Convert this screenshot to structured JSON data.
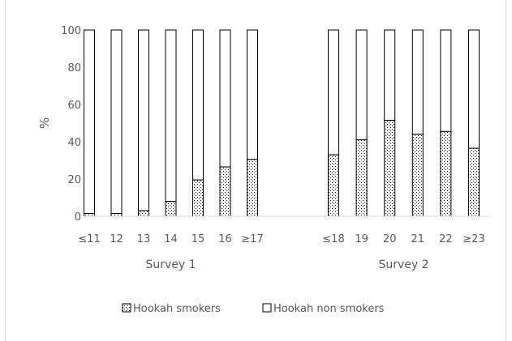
{
  "chart_data": {
    "type": "bar",
    "stacked": true,
    "ylabel": "%",
    "ylim": [
      0,
      100
    ],
    "yticks": [
      0,
      20,
      40,
      60,
      80,
      100
    ],
    "grid": false,
    "legend_position": "bottom",
    "groups": [
      {
        "name": "Survey 1",
        "categories": [
          "≤11",
          "12",
          "13",
          "14",
          "15",
          "16",
          "≥17"
        ],
        "smokers": [
          1.5,
          1.5,
          3,
          8,
          19.5,
          26.5,
          30.5
        ]
      },
      {
        "name": "Survey 2",
        "categories": [
          "≤18",
          "19",
          "20",
          "21",
          "22",
          "≥23"
        ],
        "smokers": [
          33,
          41,
          51.5,
          44,
          45.5,
          36.5
        ]
      }
    ],
    "series": [
      {
        "name": "Hookah smokers",
        "pattern": "dotted"
      },
      {
        "name": "Hookah non smokers",
        "pattern": "blank"
      }
    ],
    "colors": {
      "text": "#595959",
      "bar_stroke": "#000000",
      "axis": "#d9d9d9",
      "dots": "#000000"
    }
  }
}
